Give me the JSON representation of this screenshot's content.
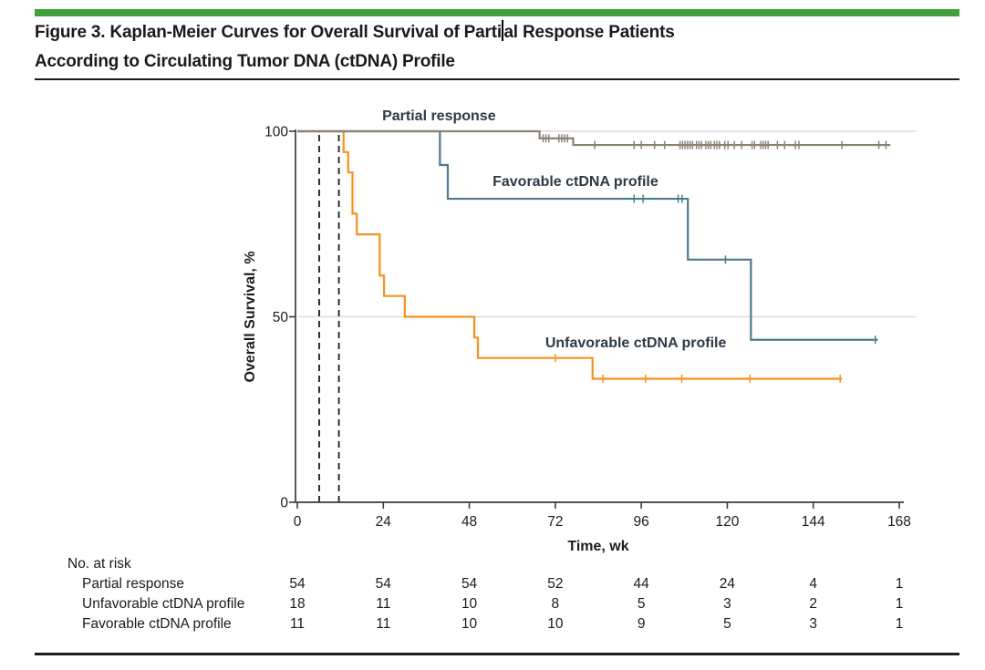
{
  "header": {
    "title_line1_before_cursor": "Figure 3. Kaplan-Meier Curves for Overall Survival of Parti",
    "title_line1_after_cursor": "al Response Patients",
    "title_line2": "According to Circulating Tumor DNA (ctDNA) Profile"
  },
  "colors": {
    "accent_bar_green": "#3fa03c",
    "partial_response": "#8b8274",
    "favorable": "#4d7b8c",
    "unfavorable": "#f6921e",
    "gridline": "#dcdcdc",
    "axis": "#3c3c3c",
    "ref_line": "#1a1a1a",
    "curve_label_text": "#2d3a47",
    "rule": "#1c1c1c"
  },
  "chart_data": {
    "type": "line",
    "subtype": "kaplan-meier-step",
    "title": "",
    "xlabel": "Time, wk",
    "ylabel": "Overall Survival, %",
    "xlim": [
      0,
      168
    ],
    "ylim": [
      0,
      100
    ],
    "x_ticks": [
      0,
      24,
      48,
      72,
      96,
      120,
      144,
      168
    ],
    "y_ticks": [
      0,
      50,
      100
    ],
    "gridlines_y": [
      50,
      100
    ],
    "ref_lines_wk": [
      6.1,
      11.6
    ],
    "legend_position": "annotations-on-plot",
    "series": [
      {
        "name": "Partial response",
        "color_key": "partial_response",
        "steps": [
          [
            0,
            100
          ],
          [
            67.6,
            100
          ],
          [
            67.6,
            98.1
          ],
          [
            77,
            98.1
          ],
          [
            77,
            96.3
          ],
          [
            165.5,
            96.3
          ]
        ],
        "censors": [
          [
            68.6,
            98.1
          ],
          [
            69.4,
            98.1
          ],
          [
            70.2,
            98.1
          ],
          [
            73,
            98.1
          ],
          [
            73.8,
            98.1
          ],
          [
            74.6,
            98.1
          ],
          [
            75.4,
            98.1
          ],
          [
            83,
            96.3
          ],
          [
            94,
            96.3
          ],
          [
            96,
            96.3
          ],
          [
            99.7,
            96.3
          ],
          [
            102.5,
            96.3
          ],
          [
            106.8,
            96.3
          ],
          [
            107.5,
            96.3
          ],
          [
            108.2,
            96.3
          ],
          [
            108.9,
            96.3
          ],
          [
            109.6,
            96.3
          ],
          [
            110.3,
            96.3
          ],
          [
            111.4,
            96.3
          ],
          [
            112.1,
            96.3
          ],
          [
            112.8,
            96.3
          ],
          [
            114,
            96.3
          ],
          [
            114.7,
            96.3
          ],
          [
            115.4,
            96.3
          ],
          [
            116.4,
            96.3
          ],
          [
            117.1,
            96.3
          ],
          [
            117.8,
            96.3
          ],
          [
            119.3,
            96.3
          ],
          [
            120.2,
            96.3
          ],
          [
            122,
            96.3
          ],
          [
            124,
            96.3
          ],
          [
            126.9,
            96.3
          ],
          [
            127.6,
            96.3
          ],
          [
            129.3,
            96.3
          ],
          [
            130,
            96.3
          ],
          [
            130.7,
            96.3
          ],
          [
            131.4,
            96.3
          ],
          [
            134,
            96.3
          ],
          [
            136,
            96.3
          ],
          [
            139,
            96.3
          ],
          [
            140,
            96.3
          ],
          [
            152,
            96.3
          ],
          [
            162.3,
            96.3
          ],
          [
            164.3,
            96.3
          ]
        ],
        "label": {
          "text": "Partial response",
          "wk": 23.7,
          "pct": 106.4
        }
      },
      {
        "name": "Favorable ctDNA profile",
        "color_key": "favorable",
        "steps": [
          [
            0,
            100
          ],
          [
            39.8,
            100
          ],
          [
            39.8,
            90.9
          ],
          [
            42,
            90.9
          ],
          [
            42,
            81.8
          ],
          [
            109,
            81.8
          ],
          [
            109,
            65.4
          ],
          [
            126.6,
            65.4
          ],
          [
            126.6,
            43.8
          ],
          [
            162,
            43.8
          ]
        ],
        "censors": [
          [
            94,
            81.8
          ],
          [
            96.5,
            81.8
          ],
          [
            106.3,
            81.8
          ],
          [
            107.4,
            81.8
          ],
          [
            119.5,
            65.4
          ],
          [
            161.3,
            43.8
          ]
        ],
        "label": {
          "text": "Favorable ctDNA profile",
          "wk": 54.5,
          "pct": 88.7
        }
      },
      {
        "name": "Unfavorable ctDNA profile",
        "color_key": "unfavorable",
        "steps": [
          [
            0,
            100
          ],
          [
            12.9,
            100
          ],
          [
            12.9,
            94.4
          ],
          [
            14.2,
            94.4
          ],
          [
            14.2,
            88.9
          ],
          [
            15.4,
            88.9
          ],
          [
            15.4,
            77.8
          ],
          [
            16.6,
            77.8
          ],
          [
            16.6,
            72.2
          ],
          [
            23,
            72.2
          ],
          [
            23,
            61.1
          ],
          [
            24.2,
            61.1
          ],
          [
            24.2,
            55.6
          ],
          [
            30,
            55.6
          ],
          [
            30,
            50
          ],
          [
            49.4,
            50
          ],
          [
            49.4,
            44.4
          ],
          [
            50.4,
            44.4
          ],
          [
            50.4,
            38.9
          ],
          [
            82.4,
            38.9
          ],
          [
            82.4,
            33.3
          ],
          [
            152,
            33.3
          ]
        ],
        "censors": [
          [
            72,
            38.9
          ],
          [
            85.3,
            33.3
          ],
          [
            97.2,
            33.3
          ],
          [
            107.3,
            33.3
          ],
          [
            126.3,
            33.3
          ],
          [
            151.5,
            33.3
          ]
        ],
        "label": {
          "text": "Unfavorable ctDNA profile",
          "wk": 69.2,
          "pct": 45.2
        }
      }
    ]
  },
  "at_risk": {
    "header": "No. at risk",
    "time_points_wk": [
      0,
      24,
      48,
      72,
      96,
      120,
      144,
      168
    ],
    "rows": [
      {
        "label": "Partial response",
        "values": [
          54,
          54,
          54,
          52,
          44,
          24,
          4,
          1
        ]
      },
      {
        "label": "Unfavorable ctDNA profile",
        "values": [
          18,
          11,
          10,
          8,
          5,
          3,
          2,
          1
        ]
      },
      {
        "label": "Favorable ctDNA profile",
        "values": [
          11,
          11,
          10,
          10,
          9,
          5,
          3,
          1
        ]
      }
    ]
  }
}
